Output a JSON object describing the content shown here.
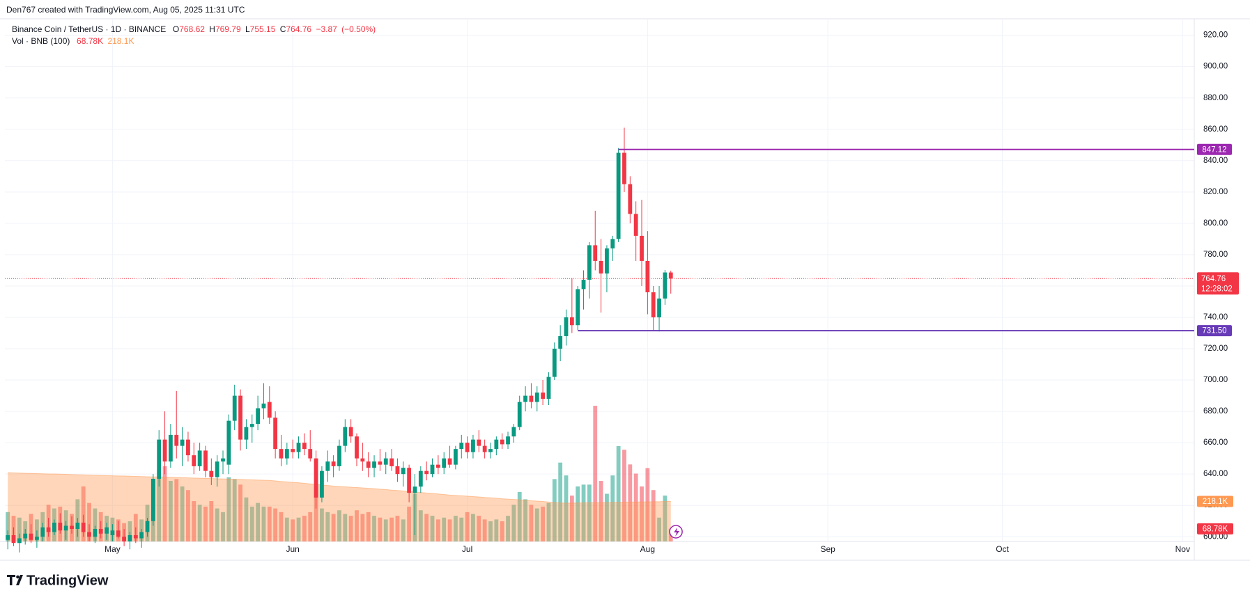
{
  "chart_data": {
    "type": "candlestick",
    "header": "Den767 created with TradingView.com, Aug 05, 2025 11:31 UTC",
    "brand": "TradingView",
    "legend": {
      "symbol": "Binance Coin / TetherUS · 1D · BINANCE",
      "ohlc_labels": [
        "O",
        "H",
        "L",
        "C"
      ],
      "open": 768.62,
      "high": 769.79,
      "low": 755.15,
      "close": 764.76,
      "change": {
        "value": -3.87,
        "label": "−3.87"
      },
      "change_pct": {
        "value": -0.5,
        "label": "(−0.50%)"
      },
      "volume_title": "Vol · BNB (100)"
    },
    "countdown": "12:28:02",
    "volume_last": {
      "value": 68.78,
      "label": "68.78K"
    },
    "volume_ma_last": {
      "value": 218.1,
      "label": "218.1K"
    },
    "up_color": "#089981",
    "down_color": "#f23645",
    "ma_color": "#ff9850",
    "hlines": [
      {
        "value": 847.12,
        "start": 105,
        "color": "#9c27b0"
      },
      {
        "value": {
          "value": 731.5,
          "label": "731.50"
        },
        "start": 98,
        "color": "#673ab7"
      }
    ],
    "xlim": [
      -0.5,
      204
    ],
    "xticks": [
      {
        "value": 18,
        "label": "May"
      },
      {
        "value": 49,
        "label": "Jun"
      },
      {
        "value": 79,
        "label": "Jul"
      },
      {
        "value": 110,
        "label": "Aug"
      },
      {
        "value": 141,
        "label": "Sep"
      },
      {
        "value": 171,
        "label": "Oct"
      },
      {
        "value": 202,
        "label": "Nov"
      }
    ],
    "ylim": [
      597,
      930.5
    ],
    "yticks": [
      {
        "value": 600,
        "label": "600.00"
      },
      {
        "value": 620,
        "label": "620.00"
      },
      {
        "value": 640,
        "label": "640.00"
      },
      {
        "value": 660,
        "label": "660.00"
      },
      {
        "value": 680,
        "label": "680.00"
      },
      {
        "value": 700,
        "label": "700.00"
      },
      {
        "value": 720,
        "label": "720.00"
      },
      {
        "value": 740,
        "label": "740.00"
      },
      {
        "value": 760,
        "label": "760.00"
      },
      {
        "value": 780,
        "label": "780.00"
      },
      {
        "value": 800,
        "label": "800.00"
      },
      {
        "value": 820,
        "label": "820.00"
      },
      {
        "value": 840,
        "label": "840.00"
      },
      {
        "value": 860,
        "label": "860.00"
      },
      {
        "value": 880,
        "label": "880.00"
      },
      {
        "value": 900,
        "label": "900.00"
      },
      {
        "value": 920,
        "label": "920.00"
      }
    ],
    "volume_ylim": [
      0,
      2850
    ],
    "ohlc": [
      [
        598,
        604,
        592,
        601
      ],
      [
        601,
        606,
        594,
        596
      ],
      [
        596,
        602,
        590,
        599
      ],
      [
        599,
        605,
        595,
        602
      ],
      [
        602,
        608,
        596,
        598
      ],
      [
        598,
        604,
        593,
        600
      ],
      [
        600,
        609,
        597,
        606
      ],
      [
        606,
        612,
        600,
        603
      ],
      [
        603,
        611,
        601,
        609
      ],
      [
        609,
        615,
        602,
        604
      ],
      [
        604,
        610,
        598,
        607
      ],
      [
        607,
        613,
        602,
        605
      ],
      [
        605,
        612,
        600,
        609
      ],
      [
        609,
        614,
        600,
        603
      ],
      [
        603,
        608,
        597,
        600
      ],
      [
        600,
        607,
        596,
        605
      ],
      [
        605,
        610,
        599,
        602
      ],
      [
        602,
        609,
        598,
        606
      ],
      [
        601,
        608,
        597,
        604
      ],
      [
        604,
        610,
        599,
        600
      ],
      [
        600,
        605,
        594,
        597
      ],
      [
        597,
        603,
        592,
        601
      ],
      [
        601,
        606,
        596,
        599
      ],
      [
        599,
        605,
        593,
        603
      ],
      [
        603,
        612,
        600,
        610
      ],
      [
        610,
        640,
        607,
        637
      ],
      [
        637,
        668,
        632,
        662
      ],
      [
        662,
        680,
        640,
        648
      ],
      [
        648,
        672,
        644,
        665
      ],
      [
        665,
        693,
        650,
        658
      ],
      [
        658,
        670,
        645,
        662
      ],
      [
        662,
        667,
        648,
        652
      ],
      [
        652,
        660,
        640,
        645
      ],
      [
        645,
        660,
        642,
        655
      ],
      [
        655,
        658,
        638,
        642
      ],
      [
        642,
        650,
        633,
        638
      ],
      [
        638,
        652,
        632,
        648
      ],
      [
        648,
        655,
        640,
        650
      ],
      [
        646,
        678,
        640,
        674
      ],
      [
        674,
        697,
        668,
        690
      ],
      [
        690,
        694,
        655,
        662
      ],
      [
        662,
        675,
        656,
        670
      ],
      [
        670,
        678,
        660,
        672
      ],
      [
        672,
        690,
        668,
        682
      ],
      [
        682,
        698,
        675,
        685
      ],
      [
        686,
        696,
        672,
        676
      ],
      [
        676,
        680,
        650,
        656
      ],
      [
        656,
        665,
        645,
        650
      ],
      [
        650,
        660,
        646,
        656
      ],
      [
        656,
        662,
        650,
        654
      ],
      [
        654,
        664,
        650,
        660
      ],
      [
        660,
        666,
        652,
        656
      ],
      [
        656,
        668,
        648,
        650
      ],
      [
        650,
        655,
        618,
        625
      ],
      [
        625,
        645,
        622,
        642
      ],
      [
        642,
        655,
        635,
        648
      ],
      [
        648,
        652,
        638,
        645
      ],
      [
        645,
        662,
        642,
        658
      ],
      [
        658,
        675,
        654,
        670
      ],
      [
        670,
        675,
        660,
        664
      ],
      [
        664,
        666,
        645,
        650
      ],
      [
        650,
        660,
        642,
        648
      ],
      [
        648,
        654,
        638,
        644
      ],
      [
        644,
        652,
        638,
        648
      ],
      [
        648,
        656,
        642,
        646
      ],
      [
        646,
        654,
        640,
        650
      ],
      [
        650,
        656,
        642,
        645
      ],
      [
        645,
        650,
        635,
        640
      ],
      [
        640,
        648,
        632,
        644
      ],
      [
        644,
        646,
        622,
        628
      ],
      [
        628,
        640,
        601,
        632
      ],
      [
        632,
        645,
        628,
        642
      ],
      [
        642,
        648,
        636,
        640
      ],
      [
        640,
        650,
        638,
        646
      ],
      [
        646,
        652,
        640,
        644
      ],
      [
        644,
        654,
        640,
        650
      ],
      [
        650,
        658,
        644,
        646
      ],
      [
        646,
        658,
        643,
        656
      ],
      [
        656,
        665,
        650,
        660
      ],
      [
        660,
        664,
        650,
        654
      ],
      [
        654,
        665,
        650,
        662
      ],
      [
        662,
        668,
        654,
        658
      ],
      [
        658,
        662,
        650,
        654
      ],
      [
        654,
        660,
        650,
        656
      ],
      [
        656,
        664,
        652,
        662
      ],
      [
        662,
        666,
        656,
        659
      ],
      [
        659,
        667,
        656,
        664
      ],
      [
        664,
        672,
        660,
        670
      ],
      [
        670,
        690,
        668,
        686
      ],
      [
        686,
        696,
        680,
        690
      ],
      [
        690,
        698,
        682,
        686
      ],
      [
        686,
        696,
        680,
        692
      ],
      [
        692,
        700,
        684,
        688
      ],
      [
        688,
        705,
        684,
        702
      ],
      [
        702,
        724,
        700,
        720
      ],
      [
        720,
        735,
        712,
        728
      ],
      [
        728,
        745,
        722,
        740
      ],
      [
        740,
        765,
        730,
        735
      ],
      [
        735,
        760,
        732,
        758
      ],
      [
        758,
        770,
        745,
        764
      ],
      [
        764,
        788,
        752,
        786
      ],
      [
        786,
        808,
        770,
        776
      ],
      [
        776,
        790,
        743,
        768
      ],
      [
        768,
        786,
        756,
        784
      ],
      [
        784,
        792,
        776,
        790
      ],
      [
        790,
        848,
        788,
        845
      ],
      [
        845,
        861,
        820,
        825
      ],
      [
        825,
        830,
        800,
        806
      ],
      [
        806,
        814,
        776,
        792
      ],
      [
        792,
        815,
        760,
        776
      ],
      [
        776,
        795,
        742,
        756
      ],
      [
        756,
        760,
        731.5,
        740
      ],
      [
        740,
        760,
        731,
        752
      ],
      [
        752,
        770.2,
        748,
        768.63
      ],
      [
        768.62,
        769.79,
        755.15,
        764.76
      ]
    ],
    "volume": [
      160,
      140,
      130,
      110,
      150,
      120,
      160,
      200,
      180,
      190,
      170,
      150,
      230,
      300,
      210,
      180,
      160,
      140,
      130,
      120,
      100,
      110,
      150,
      120,
      200,
      330,
      390,
      410,
      330,
      340,
      300,
      280,
      220,
      200,
      190,
      220,
      180,
      160,
      350,
      340,
      310,
      240,
      190,
      210,
      190,
      190,
      180,
      160,
      130,
      120,
      130,
      140,
      160,
      250,
      180,
      160,
      150,
      170,
      150,
      140,
      170,
      150,
      160,
      140,
      130,
      120,
      130,
      140,
      120,
      190,
      260,
      170,
      150,
      140,
      120,
      130,
      120,
      140,
      130,
      160,
      150,
      140,
      120,
      110,
      120,
      110,
      140,
      200,
      270,
      230,
      200,
      180,
      190,
      210,
      340,
      430,
      360,
      250,
      300,
      310,
      310,
      740,
      330,
      260,
      360,
      520,
      500,
      420,
      370,
      300,
      400,
      280,
      130,
      250,
      68.78
    ],
    "volume_ma": [
      375,
      374,
      373,
      372,
      371,
      370,
      369,
      368,
      368,
      367,
      366,
      365,
      364,
      363,
      362,
      361,
      360,
      359,
      358,
      357,
      357,
      356,
      355,
      354,
      353,
      352,
      352,
      351,
      350,
      349,
      348,
      347,
      346,
      345,
      344,
      343,
      342,
      341,
      340,
      339,
      338,
      337,
      336,
      335,
      334,
      333,
      330,
      327,
      325,
      322,
      320,
      317,
      314,
      311,
      308,
      305,
      302,
      300,
      298,
      296,
      294,
      292,
      290,
      288,
      285,
      283,
      280,
      278,
      275,
      272,
      270,
      267,
      264,
      262,
      259,
      256,
      253,
      251,
      249,
      247,
      245,
      243,
      240,
      238,
      236,
      233,
      231,
      229,
      227,
      225,
      222,
      220,
      218,
      215,
      212,
      210,
      209,
      209,
      210,
      210,
      211,
      211,
      212,
      212,
      213,
      213,
      214,
      215,
      215,
      216,
      216,
      217,
      217,
      218,
      218.1
    ]
  }
}
